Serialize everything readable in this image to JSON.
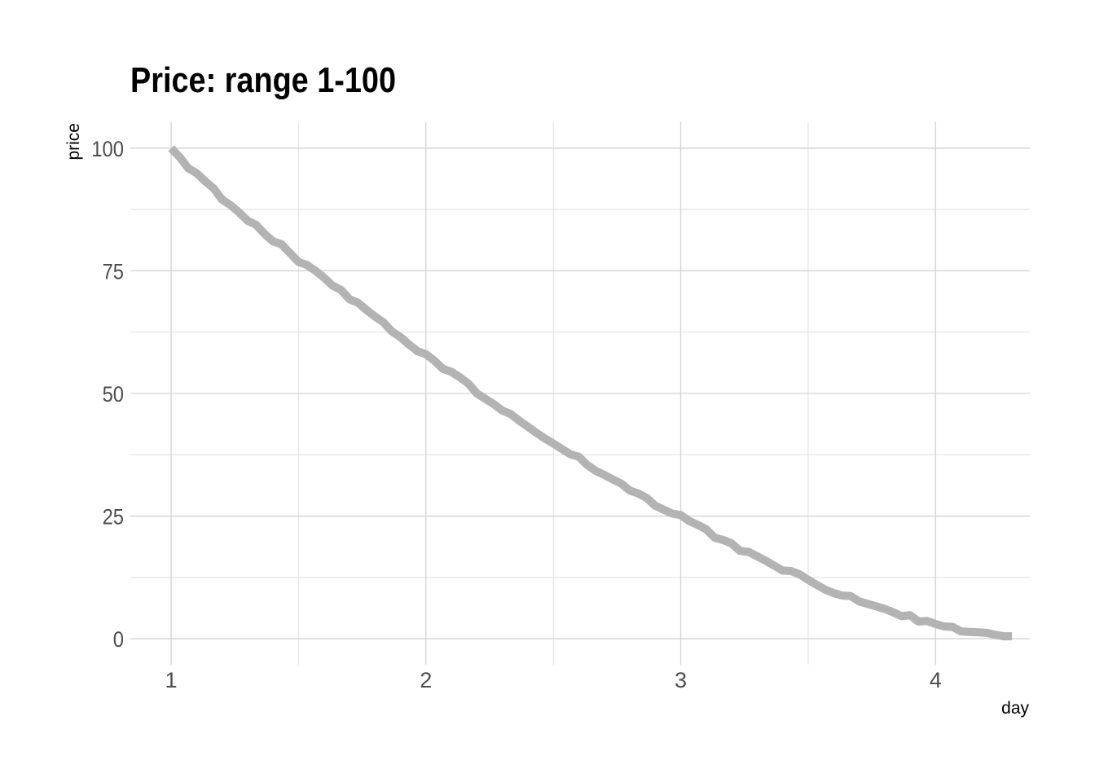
{
  "chart_data": {
    "type": "line",
    "title": "Price: range 1-100",
    "xlabel": "day",
    "ylabel": "price",
    "xlim": [
      0.84,
      4.37
    ],
    "ylim": [
      -5.3,
      105.3
    ],
    "x_ticks": [
      1,
      2,
      3,
      4
    ],
    "x_minor_ticks": [
      1.5,
      2.5,
      3.5
    ],
    "y_ticks": [
      0,
      25,
      50,
      75,
      100
    ],
    "y_minor_ticks": [
      12.5,
      37.5,
      62.5,
      87.5
    ],
    "grid": true,
    "legend": "none",
    "colors": {
      "line": "#b3b3b3",
      "grid_major": "#d3d3d3",
      "grid_minor": "#e2e2e2",
      "tick_text": "#4d4d4d"
    },
    "series": [
      {
        "x": [
          1.0,
          1.035,
          1.067,
          1.1,
          1.133,
          1.167,
          1.2,
          1.233,
          1.267,
          1.3,
          1.333,
          1.367,
          1.4,
          1.433,
          1.467,
          1.5,
          1.533,
          1.567,
          1.6,
          1.633,
          1.667,
          1.7,
          1.733,
          1.767,
          1.8,
          1.833,
          1.867,
          1.9,
          1.933,
          1.967,
          2.0,
          2.033,
          2.067,
          2.1,
          2.133,
          2.167,
          2.2,
          2.233,
          2.267,
          2.3,
          2.333,
          2.367,
          2.4,
          2.433,
          2.467,
          2.5,
          2.533,
          2.567,
          2.6,
          2.633,
          2.667,
          2.7,
          2.733,
          2.767,
          2.8,
          2.833,
          2.867,
          2.9,
          2.933,
          2.967,
          3.0,
          3.033,
          3.067,
          3.1,
          3.133,
          3.167,
          3.2,
          3.233,
          3.267,
          3.3,
          3.333,
          3.367,
          3.4,
          3.433,
          3.467,
          3.5,
          3.533,
          3.567,
          3.6,
          3.633,
          3.667,
          3.7,
          3.733,
          3.767,
          3.8,
          3.833,
          3.867,
          3.9,
          3.933,
          3.967,
          4.0,
          4.033,
          4.067,
          4.1,
          4.133,
          4.167,
          4.2,
          4.233,
          4.267,
          4.3
        ],
        "y": [
          100.0,
          98.1,
          95.9,
          94.9,
          93.3,
          91.8,
          89.5,
          88.4,
          86.9,
          85.2,
          84.4,
          82.5,
          81.0,
          80.4,
          78.6,
          76.8,
          76.2,
          75.0,
          73.6,
          72.0,
          71.1,
          69.2,
          68.5,
          67.0,
          65.7,
          64.5,
          62.6,
          61.5,
          60.0,
          58.6,
          58.0,
          56.7,
          55.0,
          54.4,
          53.3,
          52.0,
          50.0,
          48.9,
          47.8,
          46.5,
          45.8,
          44.4,
          43.2,
          42.0,
          40.8,
          39.8,
          38.7,
          37.6,
          37.1,
          35.4,
          34.2,
          33.4,
          32.5,
          31.6,
          30.2,
          29.6,
          28.7,
          27.1,
          26.3,
          25.5,
          25.2,
          24.0,
          23.2,
          22.3,
          20.6,
          20.1,
          19.4,
          17.9,
          17.7,
          16.8,
          15.9,
          14.9,
          13.9,
          13.8,
          13.1,
          12.0,
          11.0,
          10.0,
          9.3,
          8.8,
          8.7,
          7.6,
          7.1,
          6.6,
          6.1,
          5.4,
          4.6,
          4.8,
          3.5,
          3.6,
          3.0,
          2.5,
          2.4,
          1.5,
          1.4,
          1.3,
          1.2,
          0.8,
          0.5,
          0.5
        ]
      }
    ]
  }
}
